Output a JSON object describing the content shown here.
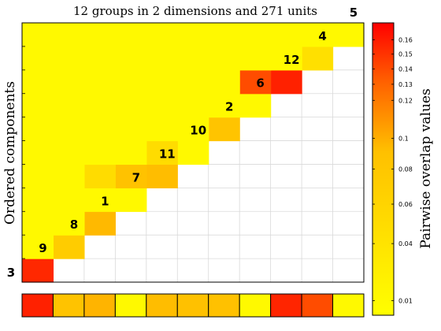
{
  "chart_data": {
    "type": "heatmap",
    "title": "12 groups in 2 dimensions and 271 units",
    "ylabel": "Ordered components",
    "colorbar_label": "Pairwise overlap values",
    "color_scale": "nonlinear",
    "colormap": [
      "#ffff00",
      "#ffa000",
      "#ff0000"
    ],
    "value_range": [
      0.005,
      0.165
    ],
    "colorbar_ticks": [
      "0.16",
      "0.15",
      "0.14",
      "0.13",
      "0.12",
      "0.1",
      "0.08",
      "0.06",
      "0.04",
      "0.01"
    ],
    "colorbar_tick_values": [
      0.16,
      0.15,
      0.14,
      0.13,
      0.12,
      0.1,
      0.08,
      0.06,
      0.04,
      0.01
    ],
    "components": [
      "3",
      "9",
      "8",
      "1",
      "7",
      "11",
      "10",
      "2",
      "6",
      "12",
      "4",
      "5"
    ],
    "matrix_rows": [
      [
        0.155,
        0.088,
        0.075
      ],
      [
        0.072,
        0.01
      ],
      [
        0.095
      ],
      [],
      [
        0.093,
        0.088,
        0.05
      ],
      [
        0.01,
        0.05
      ],
      [
        0.085
      ],
      [],
      [
        0.158,
        0.14
      ],
      [
        0.045
      ],
      []
    ],
    "default_value": 0.01,
    "bottom_strip": [
      0.158,
      0.087,
      0.097,
      0.01,
      0.093,
      0.089,
      0.089,
      0.01,
      0.156,
      0.14,
      0.01
    ],
    "grid": true
  }
}
